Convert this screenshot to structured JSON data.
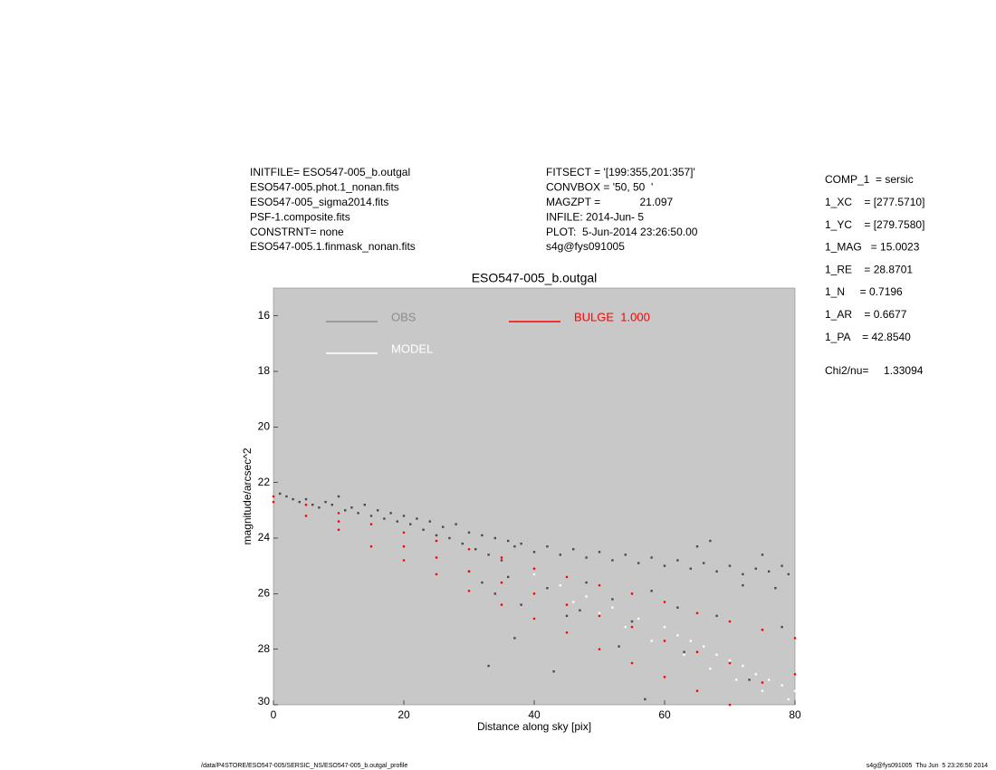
{
  "header": {
    "left": [
      "INITFILE= ESO547-005_b.outgal",
      "ESO547-005.phot.1_nonan.fits",
      "ESO547-005_sigma2014.fits",
      "PSF-1.composite.fits",
      "CONSTRNT= none",
      "ESO547-005.1.finmask_nonan.fits"
    ],
    "middle": [
      "FITSECT = '[199:355,201:357]'",
      "CONVBOX = '50, 50  '",
      "MAGZPT =             21.097",
      "INFILE: 2014-Jun- 5",
      "PLOT:  5-Jun-2014 23:26:50.00",
      "s4g@fys091005"
    ]
  },
  "parameters": [
    "COMP_1  = sersic",
    "1_XC    = [277.5710]",
    "1_YC    = [279.7580]",
    "1_MAG   = 15.0023",
    "1_RE    = 28.8701",
    "1_N     = 0.7196",
    "1_AR    = 0.6677",
    "1_PA    = 42.8540"
  ],
  "chi2": "Chi2/nu=     1.33094",
  "footer": {
    "left": "/data/P4STORE/ESO547-005/SERSIC_NS/ESO547-005_b.outgal_profile",
    "right": "s4g@fys091005  Thu Jun  5 23:26:50 2014"
  },
  "chart_data": {
    "type": "scatter",
    "title": "ESO547-005_b.outgal",
    "x_label": "Distance along sky [pix]",
    "y_label": "magnitude/arcsec^2",
    "xlim": [
      0,
      80
    ],
    "xticks": [
      0,
      20,
      40,
      60,
      80
    ],
    "ylim": [
      15,
      30
    ],
    "yticks": [
      16,
      18,
      20,
      22,
      24,
      26,
      28,
      30
    ],
    "y_inverted": true,
    "background": "#c8c8c8",
    "series": [
      {
        "name": "OBS",
        "color": "#4a4a4a",
        "legend_color": "#8c8c8c",
        "x": [
          1,
          2,
          3,
          4,
          5,
          6,
          7,
          8,
          9,
          10,
          11,
          12,
          13,
          14,
          15,
          16,
          17,
          18,
          19,
          20,
          21,
          22,
          23,
          24,
          25,
          26,
          27,
          28,
          29,
          30,
          31,
          32,
          33,
          34,
          35,
          36,
          37,
          38,
          40,
          42,
          44,
          46,
          48,
          50,
          52,
          54,
          56,
          58,
          60,
          62,
          64,
          66,
          68,
          70,
          72,
          74,
          76,
          78,
          79,
          30,
          32,
          34,
          36,
          38,
          42,
          45,
          48,
          52,
          55,
          58,
          62,
          65,
          68,
          72,
          75,
          78,
          33,
          37,
          43,
          47,
          53,
          57,
          63,
          67,
          73,
          77
        ],
        "values": [
          22.4,
          22.5,
          22.6,
          22.7,
          22.6,
          22.8,
          22.9,
          22.7,
          22.8,
          22.5,
          23.0,
          22.9,
          23.1,
          22.8,
          23.2,
          23.0,
          23.3,
          23.1,
          23.4,
          23.2,
          23.5,
          23.3,
          23.7,
          23.4,
          23.9,
          23.6,
          24.0,
          23.5,
          24.2,
          23.8,
          24.4,
          23.9,
          24.6,
          24.0,
          24.8,
          24.1,
          24.3,
          24.2,
          24.5,
          24.3,
          24.6,
          24.4,
          24.7,
          24.5,
          24.8,
          24.6,
          24.9,
          24.7,
          25.0,
          24.8,
          25.1,
          24.9,
          25.2,
          25.0,
          25.3,
          25.1,
          25.2,
          25.0,
          25.3,
          25.2,
          25.6,
          26.0,
          25.4,
          26.4,
          25.8,
          26.8,
          25.6,
          26.2,
          27.0,
          25.9,
          26.5,
          24.3,
          26.8,
          25.7,
          24.6,
          27.2,
          28.6,
          27.6,
          28.8,
          26.6,
          27.9,
          29.8,
          28.1,
          24.1,
          29.1,
          25.8
        ]
      },
      {
        "name": "MODEL",
        "color": "#ffffff",
        "x": [
          40,
          44,
          48,
          52,
          56,
          60,
          62,
          64,
          66,
          68,
          70,
          72,
          74,
          76,
          78,
          80,
          46,
          50,
          54,
          58,
          63,
          67,
          71,
          75,
          79
        ],
        "values": [
          25.3,
          25.7,
          26.1,
          26.5,
          26.9,
          27.2,
          27.5,
          27.7,
          27.9,
          28.2,
          28.4,
          28.6,
          28.9,
          29.1,
          29.3,
          29.5,
          26.3,
          26.7,
          27.2,
          27.7,
          28.2,
          28.7,
          29.1,
          29.5,
          29.8
        ]
      },
      {
        "name": "BULGE  1.000",
        "color": "#ff0000",
        "x": [
          0,
          5,
          10,
          15,
          20,
          25,
          30,
          35,
          40,
          45,
          50,
          55,
          60,
          65,
          70,
          75,
          80,
          0,
          5,
          10,
          15,
          20,
          25,
          30,
          35,
          40,
          45,
          50,
          55,
          60,
          65,
          70,
          10,
          20,
          30,
          40,
          50,
          60,
          70,
          80,
          25,
          35,
          45,
          55,
          65,
          75
        ],
        "values": [
          22.5,
          22.8,
          23.1,
          23.5,
          23.8,
          24.1,
          24.4,
          24.7,
          25.1,
          25.4,
          25.7,
          26.0,
          26.3,
          26.7,
          27.0,
          27.3,
          27.6,
          22.7,
          23.2,
          23.7,
          24.3,
          24.8,
          25.3,
          25.9,
          26.4,
          26.9,
          27.4,
          28.0,
          28.5,
          29.0,
          29.5,
          30.0,
          23.4,
          24.3,
          25.2,
          26.0,
          26.8,
          27.7,
          28.5,
          28.9,
          24.7,
          25.6,
          26.4,
          27.2,
          28.1,
          29.2
        ]
      }
    ]
  }
}
